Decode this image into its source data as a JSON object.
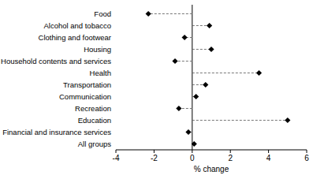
{
  "chart_data": {
    "type": "dot",
    "orientation": "horizontal",
    "categories": [
      "Food",
      "Alcohol and tobacco",
      "Clothing and footwear",
      "Housing",
      "Household contents and services",
      "Health",
      "Transportation",
      "Communication",
      "Recreation",
      "Education",
      "Financial and insurance services",
      "All groups"
    ],
    "values": [
      -2.3,
      0.9,
      -0.4,
      1.0,
      -0.9,
      3.5,
      0.7,
      0.2,
      -0.7,
      5.0,
      -0.2,
      0.1
    ],
    "x_label": "% change",
    "xlim": [
      -4,
      6
    ],
    "xticks": [
      -4,
      -2,
      0,
      2,
      4,
      6
    ],
    "color": "#000000",
    "marker": "diamond",
    "line_style": "dashed",
    "grid": false
  }
}
